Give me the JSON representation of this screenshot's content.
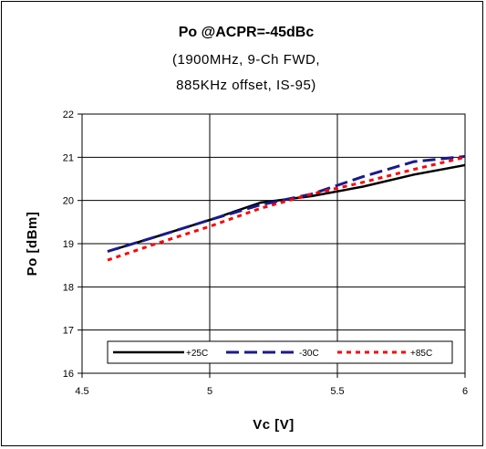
{
  "chart_data": {
    "type": "line",
    "title": "Po @ACPR=-45dBc",
    "subtitle_lines": [
      "(1900MHz, 9-Ch FWD,",
      "885KHz offset, IS-95)"
    ],
    "xlabel": "Vc [V]",
    "ylabel": "Po [dBm]",
    "xlim": [
      4.5,
      6
    ],
    "ylim": [
      16,
      22
    ],
    "x_ticks": [
      "4.5",
      "5",
      "5.5",
      "6"
    ],
    "y_ticks": [
      "16",
      "17",
      "18",
      "19",
      "20",
      "21",
      "22"
    ],
    "grid": true,
    "legend_position": "bottom",
    "series": [
      {
        "name": "+25C",
        "color": "#000000",
        "dash": "solid",
        "x": [
          4.6,
          4.8,
          5.0,
          5.2,
          5.4,
          5.6,
          5.8,
          6.0
        ],
        "y": [
          18.82,
          19.18,
          19.55,
          19.95,
          20.1,
          20.32,
          20.6,
          20.82
        ]
      },
      {
        "name": "-30C",
        "color": "#1a1a8c",
        "dash": "long-dash",
        "x": [
          4.6,
          4.8,
          5.0,
          5.2,
          5.4,
          5.6,
          5.8,
          6.0
        ],
        "y": [
          18.82,
          19.18,
          19.55,
          19.9,
          20.15,
          20.55,
          20.9,
          21.02
        ]
      },
      {
        "name": "+85C",
        "color": "#ff0000",
        "dash": "short-dash",
        "x": [
          4.6,
          4.8,
          5.0,
          5.2,
          5.4,
          5.6,
          5.8,
          6.0
        ],
        "y": [
          18.62,
          19.02,
          19.4,
          19.82,
          20.15,
          20.42,
          20.72,
          21.0
        ]
      }
    ]
  }
}
